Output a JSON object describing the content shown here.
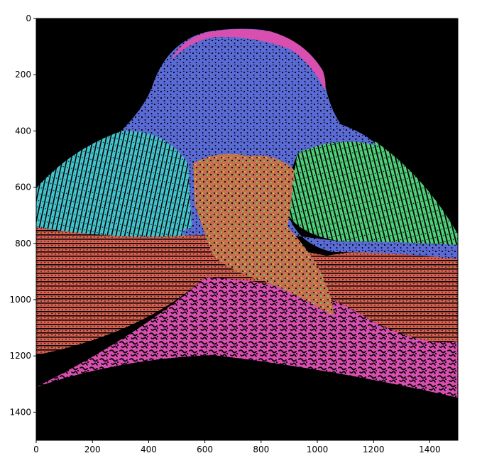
{
  "figure": {
    "x_ticks": [
      "0",
      "200",
      "400",
      "600",
      "800",
      "1000",
      "1200",
      "1400"
    ],
    "y_ticks": [
      "0",
      "200",
      "400",
      "600",
      "800",
      "1000",
      "1200",
      "1400"
    ],
    "x_range": [
      0,
      1500
    ],
    "y_range": [
      0,
      1500
    ],
    "y_axis_inverted": true,
    "background_color": "#000000",
    "region_colors": {
      "blue": "#5a6bd6",
      "cyan": "#45c3cc",
      "green": "#4fd07a",
      "red": "#d9604f",
      "magenta": "#d84fb0",
      "yellow": "#c8b84a"
    }
  }
}
